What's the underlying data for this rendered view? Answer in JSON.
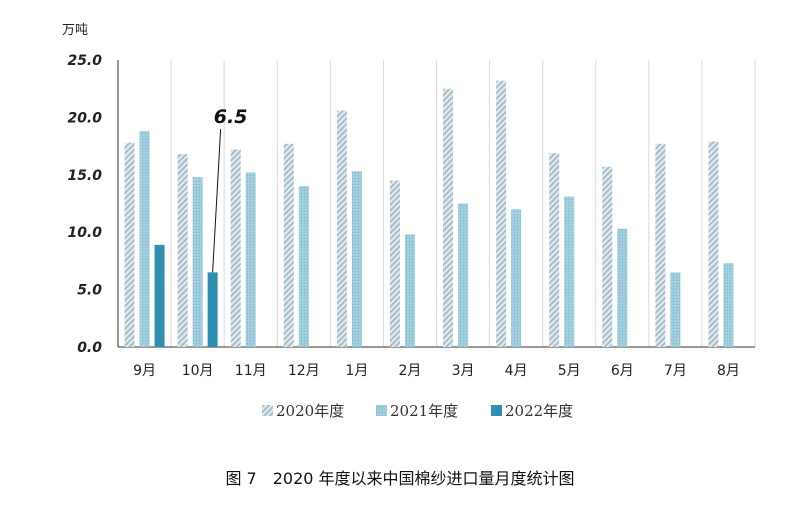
{
  "chart_data": {
    "type": "bar",
    "title": "",
    "ylabel": "万吨",
    "ylim": [
      0,
      25
    ],
    "yticks": [
      "0.0",
      "5.0",
      "10.0",
      "15.0",
      "20.0",
      "25.0"
    ],
    "categories": [
      "9月",
      "10月",
      "11月",
      "12月",
      "1月",
      "2月",
      "3月",
      "4月",
      "5月",
      "6月",
      "7月",
      "8月"
    ],
    "series": [
      {
        "name": "2020年度",
        "values": [
          17.8,
          16.8,
          17.2,
          17.7,
          20.6,
          14.5,
          22.5,
          23.2,
          16.9,
          15.7,
          17.7,
          17.9
        ],
        "color": "#b7c9d2"
      },
      {
        "name": "2021年度",
        "values": [
          18.8,
          14.8,
          15.2,
          14.0,
          15.3,
          9.8,
          12.5,
          12.0,
          13.1,
          10.3,
          6.5,
          7.3
        ],
        "color": "#8fc4d6"
      },
      {
        "name": "2022年度",
        "values": [
          8.9,
          6.5,
          null,
          null,
          null,
          null,
          null,
          null,
          null,
          null,
          null,
          null
        ],
        "color": "#2f8fb0"
      }
    ],
    "annotation": {
      "text": "6.5",
      "category": "10月",
      "series": "2022年度"
    },
    "legend": "bottom",
    "grid": true
  },
  "caption": "图 7　2020 年度以来中国棉纱进口量月度统计图"
}
